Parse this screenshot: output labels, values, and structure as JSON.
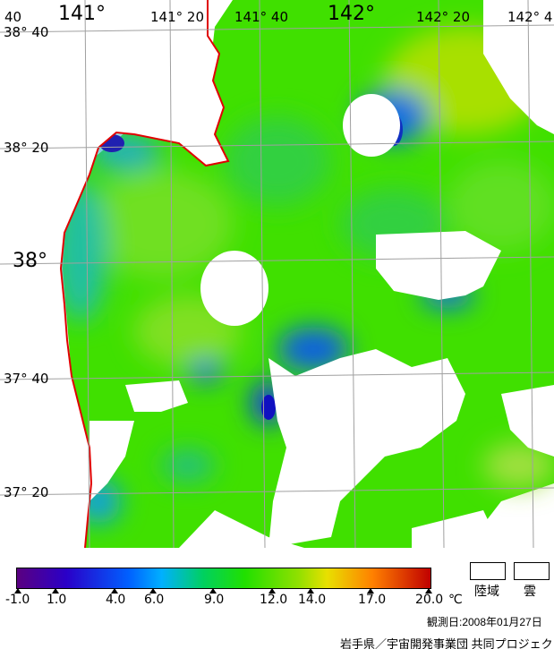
{
  "lon_labels": [
    "40",
    "141°",
    "141° 20",
    "141° 40",
    "142°",
    "142° 20",
    "142° 4"
  ],
  "lat_labels": [
    "38° 40",
    "38° 20",
    "38°",
    "37° 40",
    "37° 20"
  ],
  "colorbar": {
    "unit": "℃",
    "ticks": [
      "-1.0",
      "1.0",
      "4.0",
      "6.0",
      "9.0",
      "12.0",
      "14.0",
      "17.0",
      "20.0"
    ]
  },
  "legend": {
    "land": "陸域",
    "cloud": "雲"
  },
  "observation_date": "観測日:2008年01月27日",
  "credit": "岩手県／宇宙開発事業団 共同プロジェクト",
  "colors": {
    "coastline": "#e00000",
    "graticule": "#a0a0a0",
    "cloud_land": "#ffffff"
  }
}
